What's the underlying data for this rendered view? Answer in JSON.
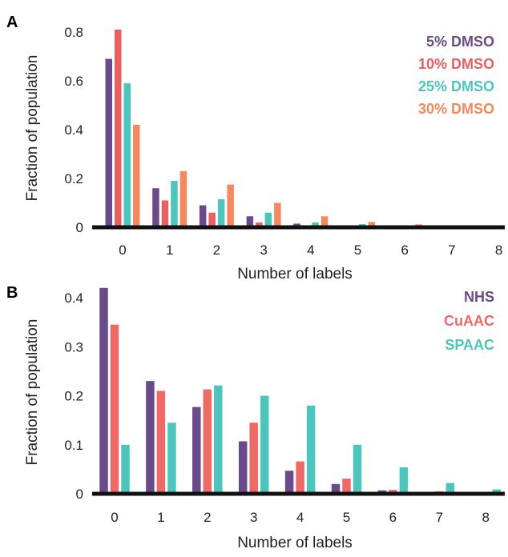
{
  "chart_data": [
    {
      "panel": "A",
      "type": "bar",
      "xlabel": "Number of labels",
      "ylabel": "Fraction of population",
      "categories": [
        "0",
        "1",
        "2",
        "3",
        "4",
        "5",
        "6",
        "7",
        "8"
      ],
      "ylim": [
        0,
        0.8
      ],
      "yticks": [
        "0",
        "0.2",
        "0.4",
        "0.6",
        "0.8"
      ],
      "legend_position": "top-right",
      "series": [
        {
          "name": "5% DMSO",
          "color": "#6B4A8A",
          "values": [
            0.69,
            0.16,
            0.09,
            0.045,
            0.015,
            0.008,
            0.003,
            0.001,
            0.0
          ]
        },
        {
          "name": "10% DMSO",
          "color": "#E86060",
          "values": [
            0.81,
            0.11,
            0.06,
            0.02,
            0.005,
            0.002,
            0.001,
            0.0,
            0.0
          ]
        },
        {
          "name": "25% DMSO",
          "color": "#4EC5BC",
          "values": [
            0.59,
            0.19,
            0.115,
            0.06,
            0.02,
            0.013,
            0.005,
            0.002,
            0.001
          ]
        },
        {
          "name": "30% DMSO",
          "color": "#F38A5F",
          "values": [
            0.42,
            0.23,
            0.175,
            0.1,
            0.045,
            0.022,
            0.012,
            0.003,
            0.001
          ]
        }
      ]
    },
    {
      "panel": "B",
      "type": "bar",
      "xlabel": "Number of labels",
      "ylabel": "Fraction of population",
      "categories": [
        "0",
        "1",
        "2",
        "3",
        "4",
        "5",
        "6",
        "7",
        "8"
      ],
      "ylim": [
        0,
        0.4
      ],
      "yticks": [
        "0",
        "0.1",
        "0.2",
        "0.3",
        "0.4"
      ],
      "legend_position": "top-right",
      "series": [
        {
          "name": "NHS",
          "color": "#6B4A8A",
          "values": [
            0.42,
            0.23,
            0.177,
            0.107,
            0.047,
            0.02,
            0.007,
            0.004,
            0.004
          ]
        },
        {
          "name": "CuAAC",
          "color": "#EE6A66",
          "values": [
            0.345,
            0.21,
            0.213,
            0.145,
            0.066,
            0.031,
            0.008,
            0.005,
            0.003
          ]
        },
        {
          "name": "SPAAC",
          "color": "#4EC5BC",
          "values": [
            0.1,
            0.145,
            0.221,
            0.2,
            0.18,
            0.1,
            0.054,
            0.022,
            0.009
          ]
        }
      ]
    }
  ]
}
